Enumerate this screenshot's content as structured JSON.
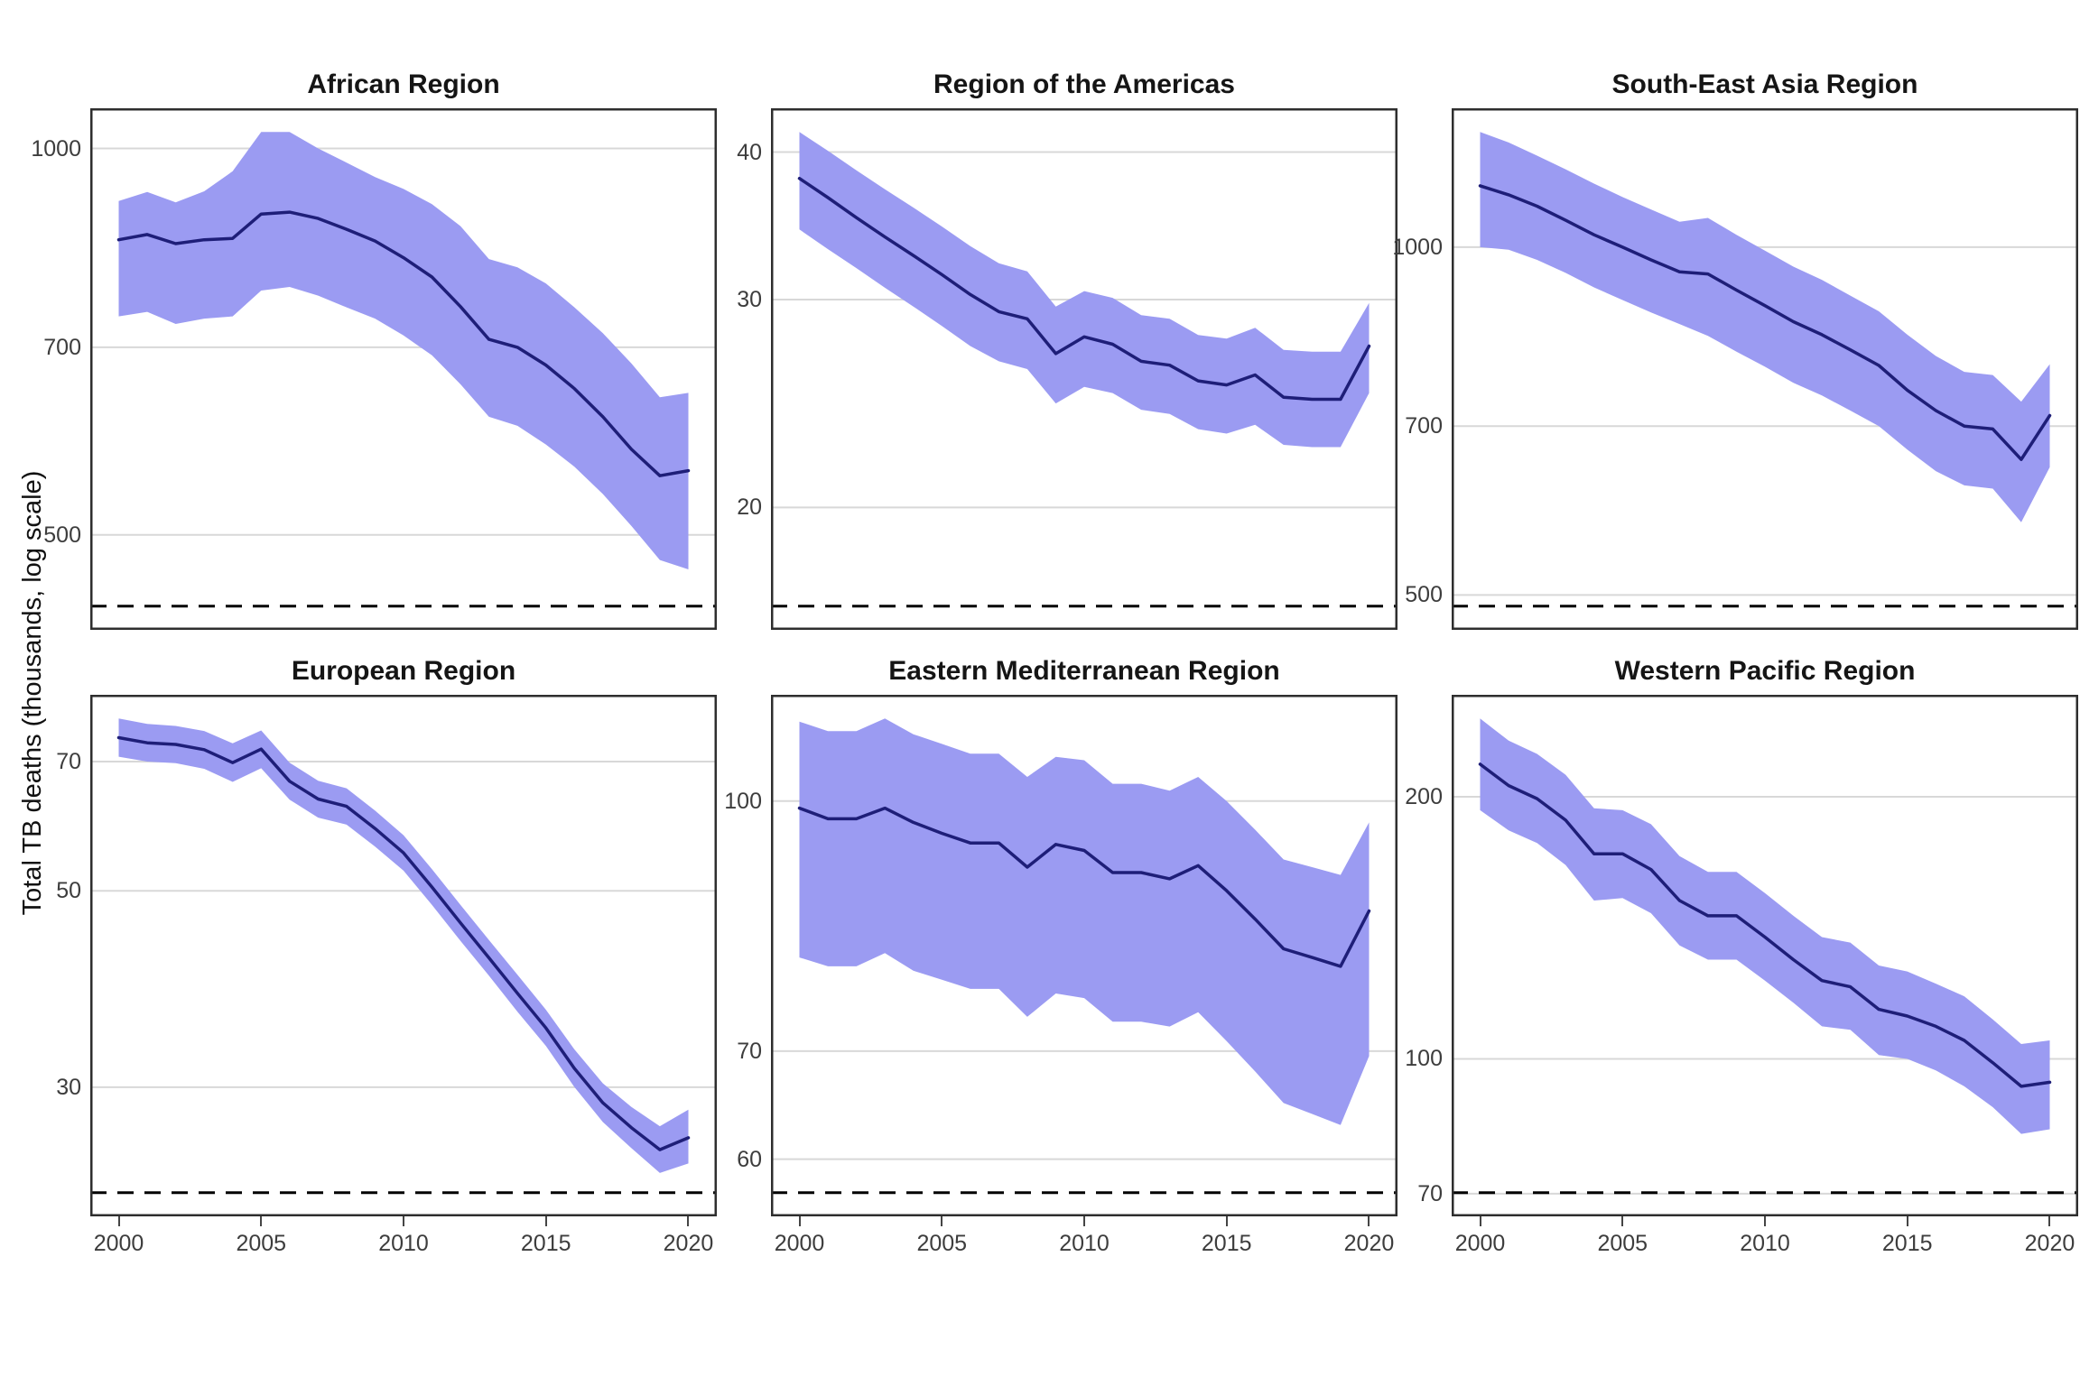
{
  "figure": {
    "ylabel": "Total TB deaths (thousands, log scale)",
    "x_axis_ticks": [
      2000,
      2005,
      2010,
      2015,
      2020
    ],
    "x_range_years": [
      2000,
      2020
    ]
  },
  "colors": {
    "ribbon": "#9b9bf2",
    "line": "#1e1e78",
    "gridline": "#d8d8d8",
    "panel_border": "#2e2e2e",
    "dashed_line": "#000000",
    "axis_text": "#3d3d3d",
    "title_text": "#151515",
    "background": "#ffffff"
  },
  "chart_data": [
    {
      "type": "line",
      "title": "African Region",
      "log_scale": true,
      "x": [
        2000,
        2001,
        2002,
        2003,
        2004,
        2005,
        2006,
        2007,
        2008,
        2009,
        2010,
        2011,
        2012,
        2013,
        2014,
        2015,
        2016,
        2017,
        2018,
        2019,
        2020
      ],
      "series": [
        {
          "name": "best estimate",
          "values": [
            849,
            857,
            843,
            849,
            851,
            889,
            892,
            882,
            865,
            847,
            822,
            794,
            753,
            710,
            700,
            678,
            650,
            618,
            583,
            556,
            561
          ]
        },
        {
          "name": "lower bound",
          "values": [
            740,
            746,
            730,
            737,
            740,
            775,
            780,
            768,
            752,
            737,
            715,
            690,
            655,
            618,
            608,
            588,
            565,
            538,
            508,
            478,
            470
          ]
        },
        {
          "name": "upper bound",
          "values": [
            910,
            925,
            908,
            926,
            960,
            1030,
            1030,
            1000,
            975,
            950,
            930,
            905,
            870,
            820,
            808,
            785,
            752,
            718,
            680,
            640,
            645
          ]
        }
      ],
      "yticks": [
        1000,
        700,
        500
      ],
      "dashed_reference_value": 440
    },
    {
      "type": "line",
      "title": "Region of the Americas",
      "log_scale": true,
      "x": [
        2000,
        2001,
        2002,
        2003,
        2004,
        2005,
        2006,
        2007,
        2008,
        2009,
        2010,
        2011,
        2012,
        2013,
        2014,
        2015,
        2016,
        2017,
        2018,
        2019,
        2020
      ],
      "series": [
        {
          "name": "best estimate",
          "values": [
            38.0,
            36.6,
            35.2,
            33.9,
            32.7,
            31.5,
            30.3,
            29.3,
            28.9,
            27.0,
            27.9,
            27.5,
            26.6,
            26.4,
            25.6,
            25.4,
            25.9,
            24.8,
            24.7,
            24.7,
            27.4
          ]
        },
        {
          "name": "lower bound",
          "values": [
            34.4,
            33.1,
            31.9,
            30.7,
            29.6,
            28.5,
            27.4,
            26.6,
            26.2,
            24.5,
            25.3,
            25.0,
            24.2,
            24.0,
            23.3,
            23.1,
            23.5,
            22.6,
            22.5,
            22.5,
            25.0
          ]
        },
        {
          "name": "upper bound",
          "values": [
            41.6,
            40.1,
            38.6,
            37.2,
            35.9,
            34.6,
            33.3,
            32.2,
            31.7,
            29.6,
            30.5,
            30.1,
            29.1,
            28.9,
            28.0,
            27.8,
            28.4,
            27.2,
            27.1,
            27.1,
            29.8
          ]
        }
      ],
      "yticks": [
        40,
        30,
        20
      ],
      "dashed_reference_value": 16.5
    },
    {
      "type": "line",
      "title": "South-East Asia Region",
      "log_scale": true,
      "x": [
        2000,
        2001,
        2002,
        2003,
        2004,
        2005,
        2006,
        2007,
        2008,
        2009,
        2010,
        2011,
        2012,
        2013,
        2014,
        2015,
        2016,
        2017,
        2018,
        2019,
        2020
      ],
      "series": [
        {
          "name": "best estimate",
          "values": [
            1130,
            1110,
            1085,
            1055,
            1025,
            1000,
            975,
            952,
            948,
            918,
            890,
            862,
            840,
            815,
            790,
            752,
            722,
            700,
            696,
            655,
            715
          ]
        },
        {
          "name": "lower bound",
          "values": [
            1000,
            995,
            975,
            950,
            923,
            900,
            878,
            858,
            838,
            812,
            788,
            763,
            744,
            722,
            700,
            668,
            640,
            622,
            618,
            578,
            645
          ]
        },
        {
          "name": "upper bound",
          "values": [
            1258,
            1232,
            1200,
            1168,
            1135,
            1105,
            1078,
            1052,
            1060,
            1025,
            993,
            962,
            937,
            908,
            880,
            840,
            805,
            780,
            775,
            735,
            792
          ]
        }
      ],
      "yticks": [
        1000,
        700,
        500
      ],
      "dashed_reference_value": 489
    },
    {
      "type": "line",
      "title": "European Region",
      "log_scale": true,
      "x": [
        2000,
        2001,
        2002,
        2003,
        2004,
        2005,
        2006,
        2007,
        2008,
        2009,
        2010,
        2011,
        2012,
        2013,
        2014,
        2015,
        2016,
        2017,
        2018,
        2019,
        2020
      ],
      "series": [
        {
          "name": "best estimate",
          "values": [
            74.5,
            73.5,
            73.2,
            72.2,
            69.8,
            72.3,
            66.5,
            63.5,
            62.3,
            58.8,
            55.2,
            50.5,
            46.0,
            42.0,
            38.3,
            35.0,
            31.5,
            28.8,
            27.0,
            25.5,
            26.3
          ]
        },
        {
          "name": "lower bound",
          "values": [
            70.9,
            70.0,
            69.7,
            68.7,
            66.4,
            68.8,
            63.4,
            60.5,
            59.4,
            56.1,
            52.7,
            48.2,
            43.9,
            40.1,
            36.5,
            33.4,
            30.0,
            27.4,
            25.6,
            24.0,
            24.6
          ]
        },
        {
          "name": "upper bound",
          "values": [
            78.3,
            77.2,
            76.8,
            75.8,
            73.4,
            75.9,
            69.8,
            66.6,
            65.3,
            61.6,
            57.8,
            52.9,
            48.2,
            44.0,
            40.2,
            36.7,
            33.1,
            30.3,
            28.5,
            27.1,
            28.3
          ]
        }
      ],
      "yticks": [
        70,
        50,
        30
      ],
      "dashed_reference_value": 22.8
    },
    {
      "type": "line",
      "title": "Eastern Mediterranean Region",
      "log_scale": true,
      "x": [
        2000,
        2001,
        2002,
        2003,
        2004,
        2005,
        2006,
        2007,
        2008,
        2009,
        2010,
        2011,
        2012,
        2013,
        2014,
        2015,
        2016,
        2017,
        2018,
        2019,
        2020
      ],
      "series": [
        {
          "name": "best estimate",
          "values": [
            99,
            97.5,
            97.5,
            99,
            97,
            95.5,
            94.2,
            94.2,
            91,
            94,
            93.2,
            90.3,
            90.3,
            89.5,
            91.2,
            88,
            84.5,
            81,
            80,
            79,
            85.5
          ]
        },
        {
          "name": "lower bound",
          "values": [
            80,
            79,
            79,
            80.5,
            78.5,
            77.5,
            76.5,
            76.5,
            73.5,
            76,
            75.5,
            73,
            73,
            72.5,
            74,
            71,
            68,
            65,
            64,
            63,
            69.5
          ]
        },
        {
          "name": "upper bound",
          "values": [
            112,
            110.5,
            110.5,
            112.5,
            110,
            108.5,
            107,
            107,
            103.5,
            106.5,
            106,
            102.5,
            102.5,
            101.5,
            103.5,
            100,
            96,
            92,
            91,
            90,
            97
          ]
        }
      ],
      "yticks": [
        100,
        70,
        60
      ],
      "dashed_reference_value": 57.2
    },
    {
      "type": "line",
      "title": "Western Pacific Region",
      "log_scale": true,
      "x": [
        2000,
        2001,
        2002,
        2003,
        2004,
        2005,
        2006,
        2007,
        2008,
        2009,
        2010,
        2011,
        2012,
        2013,
        2014,
        2015,
        2016,
        2017,
        2018,
        2019,
        2020
      ],
      "series": [
        {
          "name": "best estimate",
          "values": [
            218,
            206,
            199,
            188,
            172,
            172,
            165,
            152,
            146,
            146,
            138,
            130,
            123,
            121,
            114,
            112,
            109,
            105,
            99,
            93,
            94
          ]
        },
        {
          "name": "lower bound",
          "values": [
            193,
            183,
            177,
            167,
            152,
            153,
            147,
            135,
            130,
            130,
            123,
            116,
            109,
            108,
            101,
            100,
            97,
            93,
            88,
            82,
            83
          ]
        },
        {
          "name": "upper bound",
          "values": [
            246,
            232,
            224,
            212,
            194,
            193,
            186,
            171,
            164,
            164,
            155,
            146,
            138,
            136,
            128,
            126,
            122,
            118,
            111,
            104,
            105
          ]
        }
      ],
      "yticks": [
        200,
        100,
        70
      ],
      "dashed_reference_value": 70.2
    }
  ]
}
